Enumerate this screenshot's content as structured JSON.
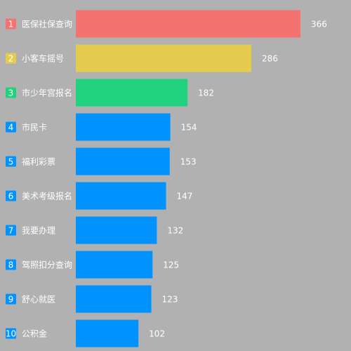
{
  "chart_data": {
    "type": "bar",
    "orientation": "horizontal",
    "ranks": [
      "1",
      "2",
      "3",
      "4",
      "5",
      "6",
      "7",
      "8",
      "9",
      "10"
    ],
    "categories": [
      "医保社保查询",
      "小客车摇号",
      "市少年宫报名",
      "市民卡",
      "福利彩票",
      "美术考级报名",
      "我要办理",
      "驾照扣分查询",
      "舒心就医",
      "公积金"
    ],
    "values": [
      366,
      286,
      182,
      154,
      153,
      147,
      132,
      125,
      123,
      102
    ],
    "colors": [
      "#f47270",
      "#e5cc4f",
      "#20d27e",
      "#0093ff",
      "#0093ff",
      "#0093ff",
      "#0093ff",
      "#0093ff",
      "#0093ff",
      "#0093ff"
    ],
    "xlim": [
      0,
      366
    ],
    "grid": false,
    "title": "",
    "xlabel": "",
    "ylabel": ""
  }
}
